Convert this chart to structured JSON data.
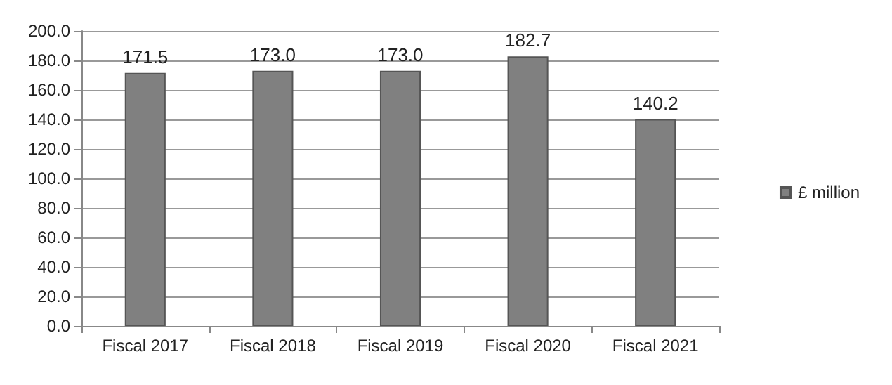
{
  "chart_data": {
    "type": "bar",
    "categories": [
      "Fiscal 2017",
      "Fiscal 2018",
      "Fiscal 2019",
      "Fiscal 2020",
      "Fiscal 2021"
    ],
    "series": [
      {
        "name": "£ million",
        "color": "#808080",
        "values": [
          171.5,
          173.0,
          173.0,
          182.7,
          140.2
        ]
      }
    ],
    "value_labels": [
      "171.5",
      "173.0",
      "173.0",
      "182.7",
      "140.2"
    ],
    "ylim": [
      0,
      200
    ],
    "yticks": [
      {
        "value": 0,
        "label": "0.0"
      },
      {
        "value": 20,
        "label": "20.0"
      },
      {
        "value": 40,
        "label": "40.0"
      },
      {
        "value": 60,
        "label": "60.0"
      },
      {
        "value": 80,
        "label": "80.0"
      },
      {
        "value": 100,
        "label": "100.0"
      },
      {
        "value": 120,
        "label": "120.0"
      },
      {
        "value": 140,
        "label": "140.0"
      },
      {
        "value": 160,
        "label": "160.0"
      },
      {
        "value": 180,
        "label": "180.0"
      },
      {
        "value": 200,
        "label": "200.0"
      }
    ],
    "grid": "y",
    "legend": "right"
  }
}
